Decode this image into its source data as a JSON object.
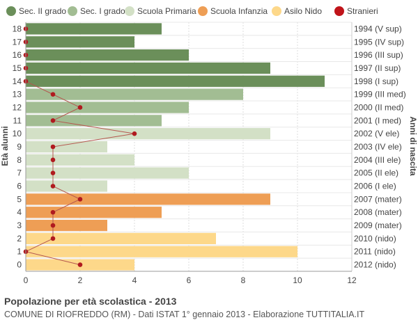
{
  "chart_data": {
    "type": "bar",
    "orientation": "horizontal",
    "ages": [
      0,
      1,
      2,
      3,
      4,
      5,
      6,
      7,
      8,
      9,
      10,
      11,
      12,
      13,
      14,
      15,
      16,
      17,
      18
    ],
    "values": [
      4,
      10,
      7,
      3,
      5,
      9,
      3,
      6,
      4,
      3,
      9,
      5,
      6,
      8,
      11,
      9,
      6,
      4,
      5
    ],
    "stranieri": [
      2,
      0,
      1,
      1,
      1,
      2,
      1,
      1,
      1,
      1,
      4,
      1,
      2,
      1,
      0,
      0,
      0,
      0,
      0
    ],
    "birth_years": [
      "2012 (nido)",
      "2011 (nido)",
      "2010 (nido)",
      "2009 (mater)",
      "2008 (mater)",
      "2007 (mater)",
      "2006 (I ele)",
      "2005 (II ele)",
      "2004 (III ele)",
      "2003 (IV ele)",
      "2002 (V ele)",
      "2001 (I med)",
      "2000 (II med)",
      "1999 (III med)",
      "1998 (I sup)",
      "1997 (II sup)",
      "1996 (III sup)",
      "1995 (IV sup)",
      "1994 (V sup)"
    ],
    "groups": [
      "asilo",
      "asilo",
      "asilo",
      "infanzia",
      "infanzia",
      "infanzia",
      "primaria",
      "primaria",
      "primaria",
      "primaria",
      "primaria",
      "sec1",
      "sec1",
      "sec1",
      "sec2",
      "sec2",
      "sec2",
      "sec2",
      "sec2"
    ],
    "legend": [
      {
        "key": "sec2",
        "label": "Sec. II grado",
        "color": "#6b8f5a"
      },
      {
        "key": "sec1",
        "label": "Sec. I grado",
        "color": "#a2bd93"
      },
      {
        "key": "primaria",
        "label": "Scuola Primaria",
        "color": "#d3e0c6"
      },
      {
        "key": "infanzia",
        "label": "Scuola Infanzia",
        "color": "#ee9e55"
      },
      {
        "key": "asilo",
        "label": "Asilo Nido",
        "color": "#fdd88a"
      },
      {
        "key": "stranieri",
        "label": "Stranieri",
        "color": "#c0141a"
      }
    ],
    "xlim": [
      0,
      12
    ],
    "xticks": [
      0,
      2,
      4,
      6,
      8,
      10,
      12
    ],
    "ylabel": "Età alunni",
    "ylabel_right": "Anni di nascita",
    "title": "Popolazione per età scolastica - 2013",
    "subtitle": "COMUNE DI RIOFREDDO (RM) - Dati ISTAT 1° gennaio 2013 - Elaborazione TUTTITALIA.IT",
    "line_color": "#b5574f"
  }
}
